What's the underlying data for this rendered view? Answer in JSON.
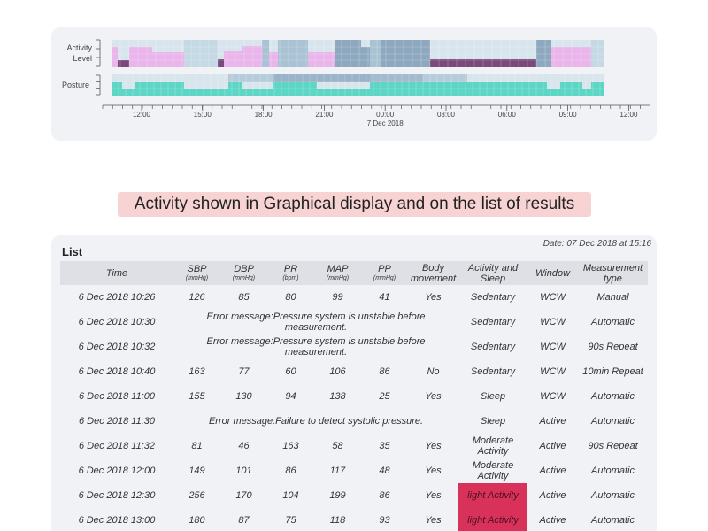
{
  "chart": {
    "row_labels": [
      "Activity",
      "Level",
      "Posture"
    ],
    "time_ticks": [
      "12:00",
      "15:00",
      "18:00",
      "21:00",
      "00:00",
      "03:00",
      "06:00",
      "09:00",
      "12:00"
    ],
    "date_label": "7 Dec 2018",
    "colors": {
      "background": "#d8e5ec",
      "light_blue": "#c5d9e4",
      "mid_blue": "#a9c2d4",
      "steel_blue": "#8ea8c0",
      "pink": "#e9b5ea",
      "dark_purple": "#7b4a7b",
      "teal": "#5ed6c6",
      "axis": "#555555"
    }
  },
  "caption": "Activity shown in Graphical display and on the list of results",
  "list": {
    "title": "List",
    "date": "Date: 07 Dec 2018 at 15:16",
    "columns": [
      {
        "label": "Time",
        "unit": ""
      },
      {
        "label": "SBP",
        "unit": "(mmHg)"
      },
      {
        "label": "DBP",
        "unit": "(mmHg)"
      },
      {
        "label": "PR",
        "unit": "(bpm)"
      },
      {
        "label": "MAP",
        "unit": "(mmHg)"
      },
      {
        "label": "PP",
        "unit": "(mmHg)"
      },
      {
        "label": "Body movement",
        "unit": ""
      },
      {
        "label": "Activity and Sleep",
        "unit": ""
      },
      {
        "label": "Window",
        "unit": ""
      },
      {
        "label": "Measurement type",
        "unit": ""
      }
    ],
    "rows": [
      {
        "time": "6 Dec 2018 10:26",
        "values": [
          "126",
          "85",
          "80",
          "99",
          "41",
          "Yes"
        ],
        "activity": "Sedentary",
        "window": "WCW",
        "type": "Manual"
      },
      {
        "time": "6 Dec 2018 10:30",
        "error": "Error message:Pressure system is unstable before measurement.",
        "activity": "Sedentary",
        "window": "WCW",
        "type": "Automatic"
      },
      {
        "time": "6 Dec 2018 10:32",
        "error": "Error message:Pressure system is unstable before measurement.",
        "activity": "Sedentary",
        "window": "WCW",
        "type": "90s Repeat"
      },
      {
        "time": "6 Dec 2018 10:40",
        "values": [
          "163",
          "77",
          "60",
          "106",
          "86",
          "No"
        ],
        "activity": "Sedentary",
        "window": "WCW",
        "type": "10min Repeat"
      },
      {
        "time": "6 Dec 2018 11:00",
        "values": [
          "155",
          "130",
          "94",
          "138",
          "25",
          "Yes"
        ],
        "activity": "Sleep",
        "window": "WCW",
        "type": "Automatic"
      },
      {
        "time": "6 Dec 2018 11:30",
        "error": "Error message:Failure to detect systolic pressure.",
        "activity": "Sleep",
        "window": "Active",
        "type": "Automatic"
      },
      {
        "time": "6 Dec 2018 11:32",
        "values": [
          "81",
          "46",
          "163",
          "58",
          "35",
          "Yes"
        ],
        "activity": "Moderate Activity",
        "window": "Active",
        "type": "90s Repeat"
      },
      {
        "time": "6 Dec 2018 12:00",
        "values": [
          "149",
          "101",
          "86",
          "117",
          "48",
          "Yes"
        ],
        "activity": "Moderate Activity",
        "window": "Active",
        "type": "Automatic"
      },
      {
        "time": "6 Dec 2018 12:30",
        "values": [
          "256",
          "170",
          "104",
          "199",
          "86",
          "Yes"
        ],
        "activity": "light Activity",
        "highlight": true,
        "window": "Active",
        "type": "Automatic"
      },
      {
        "time": "6 Dec 2018 13:00",
        "values": [
          "180",
          "87",
          "75",
          "118",
          "93",
          "Yes"
        ],
        "activity": "light Activity",
        "highlight": true,
        "window": "Active",
        "type": "Automatic"
      }
    ]
  }
}
